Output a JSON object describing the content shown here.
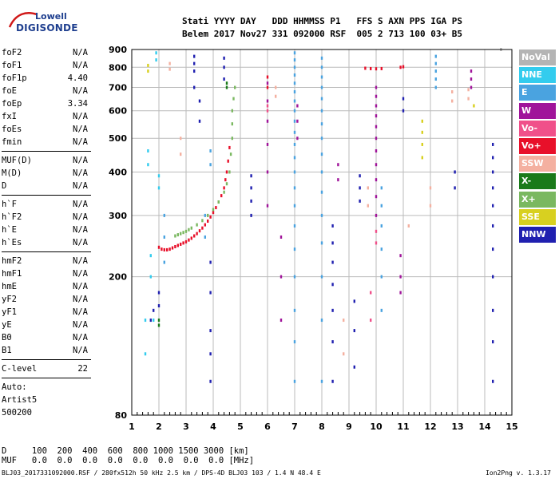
{
  "logo": {
    "top": "Lowell",
    "bottom": "DIGISONDE"
  },
  "header": {
    "line1": "Stati YYYY DAY   DDD HHMMSS P1   FFS S AXN PPS IGA PS",
    "line2": "Belem 2017 Nov27 331 092000 RSF  005 2 713 100 03+ B5"
  },
  "params": [
    [
      {
        "label": "foF2",
        "value": "N/A"
      },
      {
        "label": "foF1",
        "value": "N/A"
      },
      {
        "label": "foF1p",
        "value": "4.40"
      },
      {
        "label": "foE",
        "value": "N/A"
      },
      {
        "label": "foEp",
        "value": "3.34"
      },
      {
        "label": "fxI",
        "value": "N/A"
      },
      {
        "label": "foEs",
        "value": "N/A"
      },
      {
        "label": "fmin",
        "value": "N/A"
      }
    ],
    [
      {
        "label": "MUF(D)",
        "value": "N/A"
      },
      {
        "label": "M(D)",
        "value": "N/A"
      },
      {
        "label": "D",
        "value": "N/A"
      }
    ],
    [
      {
        "label": "h`F",
        "value": "N/A"
      },
      {
        "label": "h`F2",
        "value": "N/A"
      },
      {
        "label": "h`E",
        "value": "N/A"
      },
      {
        "label": "h`Es",
        "value": "N/A"
      }
    ],
    [
      {
        "label": "hmF2",
        "value": "N/A"
      },
      {
        "label": "hmF1",
        "value": "N/A"
      },
      {
        "label": "hmE",
        "value": "N/A"
      },
      {
        "label": "yF2",
        "value": "N/A"
      },
      {
        "label": "yF1",
        "value": "N/A"
      },
      {
        "label": "yE",
        "value": "N/A"
      },
      {
        "label": "B0",
        "value": "N/A"
      },
      {
        "label": "B1",
        "value": "N/A"
      }
    ],
    [
      {
        "label": "C-level",
        "value": "22"
      }
    ]
  ],
  "extra_lines": [
    "Auto:",
    "Artist5",
    "500200"
  ],
  "footer": {
    "d_line": "D     100  200  400  600  800 1000 1500 3000 [km]",
    "muf_line": "MUF   0.0  0.0  0.0  0.0  0.0  0.0  0.0  0.0 [MHz]",
    "file_line": "BLJ03_2017331092000.RSF / 280fx512h 50 kHz 2.5 km / DPS-4D BLJ03 103 / 1.4 N 48.4 E",
    "version": "Ion2Png v. 1.3.17"
  },
  "legend": [
    {
      "label": "NoVal",
      "bg": "#b4b4b4",
      "fg": "#ffffff"
    },
    {
      "label": "NNE",
      "bg": "#33ccee",
      "fg": "#ffffff"
    },
    {
      "label": "E",
      "bg": "#4aa3e0",
      "fg": "#ffffff"
    },
    {
      "label": "W",
      "bg": "#a0149a",
      "fg": "#ffffff"
    },
    {
      "label": "Vo-",
      "bg": "#f0508a",
      "fg": "#ffffff"
    },
    {
      "label": "Vo+",
      "bg": "#e8102a",
      "fg": "#ffffff"
    },
    {
      "label": "SSW",
      "bg": "#f4b0a0",
      "fg": "#ffffff"
    },
    {
      "label": "X-",
      "bg": "#1a7a1a",
      "fg": "#ffffff"
    },
    {
      "label": "X+",
      "bg": "#7ab860",
      "fg": "#ffffff"
    },
    {
      "label": "SSE",
      "bg": "#d8d020",
      "fg": "#ffffff"
    },
    {
      "label": "NNW",
      "bg": "#2020b0",
      "fg": "#ffffff"
    }
  ],
  "chart_data": {
    "type": "scatter",
    "title": "",
    "xlabel": "",
    "ylabel": "",
    "xlim": [
      1,
      15
    ],
    "ylim": [
      80,
      900
    ],
    "y_scale": "log",
    "x_ticks": [
      1,
      2,
      3,
      4,
      5,
      6,
      7,
      8,
      9,
      10,
      11,
      12,
      13,
      14,
      15
    ],
    "y_ticks": [
      80,
      200,
      300,
      400,
      500,
      600,
      700,
      800,
      900
    ],
    "grid": true,
    "legend_position": "right",
    "series": [
      {
        "name": "Vo+",
        "color": "#e8102a",
        "points": [
          [
            2.0,
            243
          ],
          [
            2.1,
            240
          ],
          [
            2.2,
            239
          ],
          [
            2.3,
            239
          ],
          [
            2.4,
            240
          ],
          [
            2.5,
            242
          ],
          [
            2.6,
            244
          ],
          [
            2.7,
            246
          ],
          [
            2.8,
            248
          ],
          [
            2.9,
            250
          ],
          [
            3.0,
            252
          ],
          [
            3.1,
            255
          ],
          [
            3.2,
            258
          ],
          [
            3.3,
            262
          ],
          [
            3.4,
            266
          ],
          [
            3.5,
            271
          ],
          [
            3.6,
            276
          ],
          [
            3.7,
            282
          ],
          [
            3.8,
            289
          ],
          [
            3.9,
            297
          ],
          [
            4.0,
            306
          ],
          [
            4.1,
            316
          ],
          [
            4.2,
            328
          ],
          [
            4.3,
            342
          ],
          [
            4.4,
            360
          ],
          [
            4.45,
            380
          ],
          [
            4.5,
            400
          ],
          [
            4.55,
            430
          ],
          [
            4.6,
            470
          ],
          [
            6.0,
            700
          ],
          [
            6.0,
            750
          ],
          [
            9.6,
            795
          ],
          [
            9.8,
            793
          ],
          [
            10.0,
            792
          ],
          [
            10.2,
            793
          ],
          [
            10.9,
            800
          ],
          [
            11.0,
            803
          ]
        ]
      },
      {
        "name": "X+",
        "color": "#7ab860",
        "points": [
          [
            2.6,
            262
          ],
          [
            2.7,
            264
          ],
          [
            2.8,
            266
          ],
          [
            2.9,
            268
          ],
          [
            3.0,
            270
          ],
          [
            3.1,
            273
          ],
          [
            3.2,
            276
          ],
          [
            3.4,
            282
          ],
          [
            3.6,
            290
          ],
          [
            3.8,
            300
          ],
          [
            4.0,
            312
          ],
          [
            4.2,
            328
          ],
          [
            4.4,
            350
          ],
          [
            4.5,
            370
          ],
          [
            4.6,
            400
          ],
          [
            4.65,
            450
          ],
          [
            4.7,
            500
          ],
          [
            4.7,
            550
          ],
          [
            4.7,
            600
          ],
          [
            4.75,
            650
          ],
          [
            4.8,
            700
          ]
        ]
      },
      {
        "name": "W",
        "color": "#a0149a",
        "points": [
          [
            6.0,
            320
          ],
          [
            6.0,
            400
          ],
          [
            6.0,
            480
          ],
          [
            6.0,
            560
          ],
          [
            6.0,
            640
          ],
          [
            6.0,
            720
          ],
          [
            6.5,
            150
          ],
          [
            6.5,
            200
          ],
          [
            6.5,
            260
          ],
          [
            7.1,
            500
          ],
          [
            7.1,
            560
          ],
          [
            7.1,
            620
          ],
          [
            8.6,
            380
          ],
          [
            8.6,
            420
          ],
          [
            10.0,
            300
          ],
          [
            10.0,
            340
          ],
          [
            10.0,
            380
          ],
          [
            10.0,
            420
          ],
          [
            10.0,
            460
          ],
          [
            10.0,
            500
          ],
          [
            10.0,
            540
          ],
          [
            10.0,
            580
          ],
          [
            10.0,
            620
          ],
          [
            10.0,
            660
          ],
          [
            10.0,
            700
          ],
          [
            10.9,
            180
          ],
          [
            10.9,
            200
          ],
          [
            10.9,
            230
          ],
          [
            13.5,
            700
          ],
          [
            13.5,
            740
          ],
          [
            13.5,
            780
          ]
        ]
      },
      {
        "name": "E",
        "color": "#4aa3e0",
        "points": [
          [
            2.2,
            220
          ],
          [
            2.2,
            260
          ],
          [
            2.2,
            300
          ],
          [
            3.7,
            260
          ],
          [
            3.7,
            300
          ],
          [
            3.9,
            420
          ],
          [
            3.9,
            460
          ],
          [
            7.0,
            100
          ],
          [
            7.0,
            130
          ],
          [
            7.0,
            160
          ],
          [
            7.0,
            200
          ],
          [
            7.0,
            240
          ],
          [
            7.0,
            280
          ],
          [
            7.0,
            320
          ],
          [
            7.0,
            360
          ],
          [
            7.0,
            400
          ],
          [
            7.0,
            440
          ],
          [
            7.0,
            480
          ],
          [
            7.0,
            520
          ],
          [
            7.0,
            560
          ],
          [
            7.0,
            600
          ],
          [
            7.0,
            640
          ],
          [
            7.0,
            680
          ],
          [
            7.0,
            720
          ],
          [
            7.0,
            760
          ],
          [
            7.0,
            800
          ],
          [
            7.0,
            840
          ],
          [
            7.0,
            880
          ],
          [
            8.0,
            100
          ],
          [
            8.0,
            150
          ],
          [
            8.0,
            200
          ],
          [
            8.0,
            250
          ],
          [
            8.0,
            300
          ],
          [
            8.0,
            350
          ],
          [
            8.0,
            400
          ],
          [
            8.0,
            450
          ],
          [
            8.0,
            500
          ],
          [
            8.0,
            550
          ],
          [
            8.0,
            600
          ],
          [
            8.0,
            650
          ],
          [
            8.0,
            700
          ],
          [
            8.0,
            750
          ],
          [
            8.0,
            800
          ],
          [
            8.0,
            850
          ],
          [
            10.2,
            160
          ],
          [
            10.2,
            200
          ],
          [
            10.2,
            240
          ],
          [
            10.2,
            280
          ],
          [
            10.2,
            320
          ],
          [
            10.2,
            360
          ],
          [
            12.2,
            700
          ],
          [
            12.2,
            740
          ],
          [
            12.2,
            780
          ],
          [
            12.2,
            820
          ],
          [
            12.2,
            860
          ]
        ]
      },
      {
        "name": "NNW",
        "color": "#2020b0",
        "points": [
          [
            1.7,
            150
          ],
          [
            1.8,
            160
          ],
          [
            2.0,
            165
          ],
          [
            2.0,
            180
          ],
          [
            3.3,
            780
          ],
          [
            3.3,
            820
          ],
          [
            3.3,
            860
          ],
          [
            3.3,
            700
          ],
          [
            3.5,
            640
          ],
          [
            3.5,
            560
          ],
          [
            3.9,
            100
          ],
          [
            3.9,
            120
          ],
          [
            3.9,
            140
          ],
          [
            3.9,
            180
          ],
          [
            3.9,
            220
          ],
          [
            4.4,
            740
          ],
          [
            4.4,
            800
          ],
          [
            4.4,
            850
          ],
          [
            5.4,
            300
          ],
          [
            5.4,
            330
          ],
          [
            5.4,
            360
          ],
          [
            5.4,
            390
          ],
          [
            8.4,
            100
          ],
          [
            8.4,
            130
          ],
          [
            8.4,
            160
          ],
          [
            8.4,
            190
          ],
          [
            8.4,
            220
          ],
          [
            8.4,
            250
          ],
          [
            8.4,
            280
          ],
          [
            9.2,
            110
          ],
          [
            9.2,
            140
          ],
          [
            9.2,
            170
          ],
          [
            9.4,
            330
          ],
          [
            9.4,
            360
          ],
          [
            9.4,
            390
          ],
          [
            11.0,
            600
          ],
          [
            11.0,
            650
          ],
          [
            12.9,
            360
          ],
          [
            12.9,
            400
          ],
          [
            14.3,
            100
          ],
          [
            14.3,
            130
          ],
          [
            14.3,
            160
          ],
          [
            14.3,
            200
          ],
          [
            14.3,
            240
          ],
          [
            14.3,
            280
          ],
          [
            14.3,
            320
          ],
          [
            14.3,
            360
          ],
          [
            14.3,
            400
          ],
          [
            14.3,
            440
          ],
          [
            14.3,
            480
          ]
        ]
      },
      {
        "name": "NNE",
        "color": "#33ccee",
        "points": [
          [
            1.5,
            120
          ],
          [
            1.5,
            150
          ],
          [
            1.6,
            420
          ],
          [
            1.6,
            460
          ],
          [
            1.7,
            200
          ],
          [
            1.7,
            230
          ],
          [
            1.9,
            840
          ],
          [
            1.9,
            880
          ],
          [
            1.8,
            150
          ],
          [
            2.0,
            360
          ],
          [
            2.0,
            390
          ]
        ]
      },
      {
        "name": "SSW",
        "color": "#f4b0a0",
        "points": [
          [
            2.4,
            820
          ],
          [
            2.4,
            790
          ],
          [
            2.8,
            500
          ],
          [
            2.8,
            450
          ],
          [
            6.3,
            660
          ],
          [
            6.3,
            700
          ],
          [
            8.8,
            120
          ],
          [
            8.8,
            150
          ],
          [
            9.7,
            320
          ],
          [
            9.7,
            360
          ],
          [
            11.2,
            280
          ],
          [
            12.0,
            320
          ],
          [
            12.0,
            360
          ],
          [
            12.8,
            640
          ],
          [
            12.8,
            680
          ],
          [
            13.4,
            650
          ],
          [
            13.4,
            690
          ]
        ]
      },
      {
        "name": "SSE",
        "color": "#d8d020",
        "points": [
          [
            1.6,
            780
          ],
          [
            1.6,
            810
          ],
          [
            11.7,
            440
          ],
          [
            11.7,
            480
          ],
          [
            11.7,
            520
          ],
          [
            11.7,
            560
          ],
          [
            13.6,
            620
          ]
        ]
      },
      {
        "name": "X-",
        "color": "#1a7a1a",
        "points": [
          [
            2.0,
            145
          ],
          [
            2.0,
            150
          ],
          [
            4.5,
            700
          ],
          [
            4.5,
            720
          ]
        ]
      },
      {
        "name": "Vo-",
        "color": "#f0508a",
        "points": [
          [
            6.0,
            600
          ],
          [
            6.0,
            620
          ],
          [
            9.8,
            150
          ],
          [
            9.8,
            180
          ],
          [
            10.0,
            250
          ],
          [
            10.0,
            270
          ]
        ]
      },
      {
        "name": "NoVal",
        "color": "#b4b4b4",
        "points": [
          [
            14.6,
            900
          ]
        ]
      }
    ]
  }
}
